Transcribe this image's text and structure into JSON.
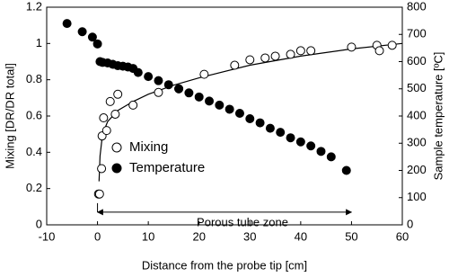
{
  "chart_data": {
    "type": "scatter",
    "xlabel": "Distance from the probe tip [cm]",
    "ylabel": "Mixing [DR/DR total]",
    "y2label": "Sample temperature [ºC]",
    "xlim": [
      -10,
      60
    ],
    "xticks": [
      -10,
      0,
      10,
      20,
      30,
      40,
      50,
      60
    ],
    "ylim": [
      0,
      1.2
    ],
    "yticks": [
      0,
      0.2,
      0.4,
      0.6,
      0.8,
      1,
      1.2
    ],
    "y2lim": [
      0,
      800
    ],
    "y2ticks": [
      0,
      100,
      200,
      300,
      400,
      500,
      600,
      700,
      800
    ],
    "grid": false,
    "legend": "lower left",
    "series": [
      {
        "name": "Mixing",
        "color": "#000000",
        "marker": "open",
        "x": [
          0.2,
          0.4,
          0.8,
          0.9,
          1.2,
          1.8,
          2.5,
          3.5,
          4,
          7,
          12,
          16,
          21,
          27,
          30,
          33,
          35,
          38,
          40,
          42,
          50,
          55,
          55.5,
          58
        ],
        "values": [
          0.17,
          0.17,
          0.31,
          0.49,
          0.59,
          0.52,
          0.68,
          0.61,
          0.72,
          0.66,
          0.73,
          0.75,
          0.83,
          0.88,
          0.91,
          0.92,
          0.93,
          0.94,
          0.96,
          0.96,
          0.98,
          0.99,
          0.96,
          0.99
        ]
      },
      {
        "name": "Temperature",
        "color": "#000000",
        "marker": "filled",
        "axis": "y2",
        "x": [
          -6,
          -3,
          -1,
          0,
          0.5,
          1,
          2,
          3,
          4,
          5,
          6,
          7,
          8,
          10,
          12,
          14,
          16,
          18,
          20,
          22,
          24,
          26,
          28,
          30,
          32,
          34,
          36,
          38,
          40,
          42,
          44,
          46,
          49
        ],
        "values": [
          740,
          710,
          690,
          665,
          600,
          597,
          595,
          590,
          585,
          583,
          580,
          575,
          560,
          545,
          530,
          515,
          500,
          485,
          470,
          455,
          440,
          425,
          410,
          390,
          375,
          355,
          340,
          320,
          305,
          290,
          270,
          250,
          200
        ]
      }
    ],
    "fit_line": {
      "color": "#000000",
      "x": [
        0.3,
        0.5,
        1,
        2,
        4,
        7,
        10,
        15,
        20,
        30,
        40,
        50,
        60
      ],
      "values": [
        0.24,
        0.38,
        0.5,
        0.57,
        0.63,
        0.68,
        0.72,
        0.77,
        0.81,
        0.88,
        0.93,
        0.97,
        1.0
      ]
    },
    "annotation": {
      "text": "Porous tube zone",
      "x_range": [
        0,
        50
      ],
      "y": 0.07
    }
  }
}
